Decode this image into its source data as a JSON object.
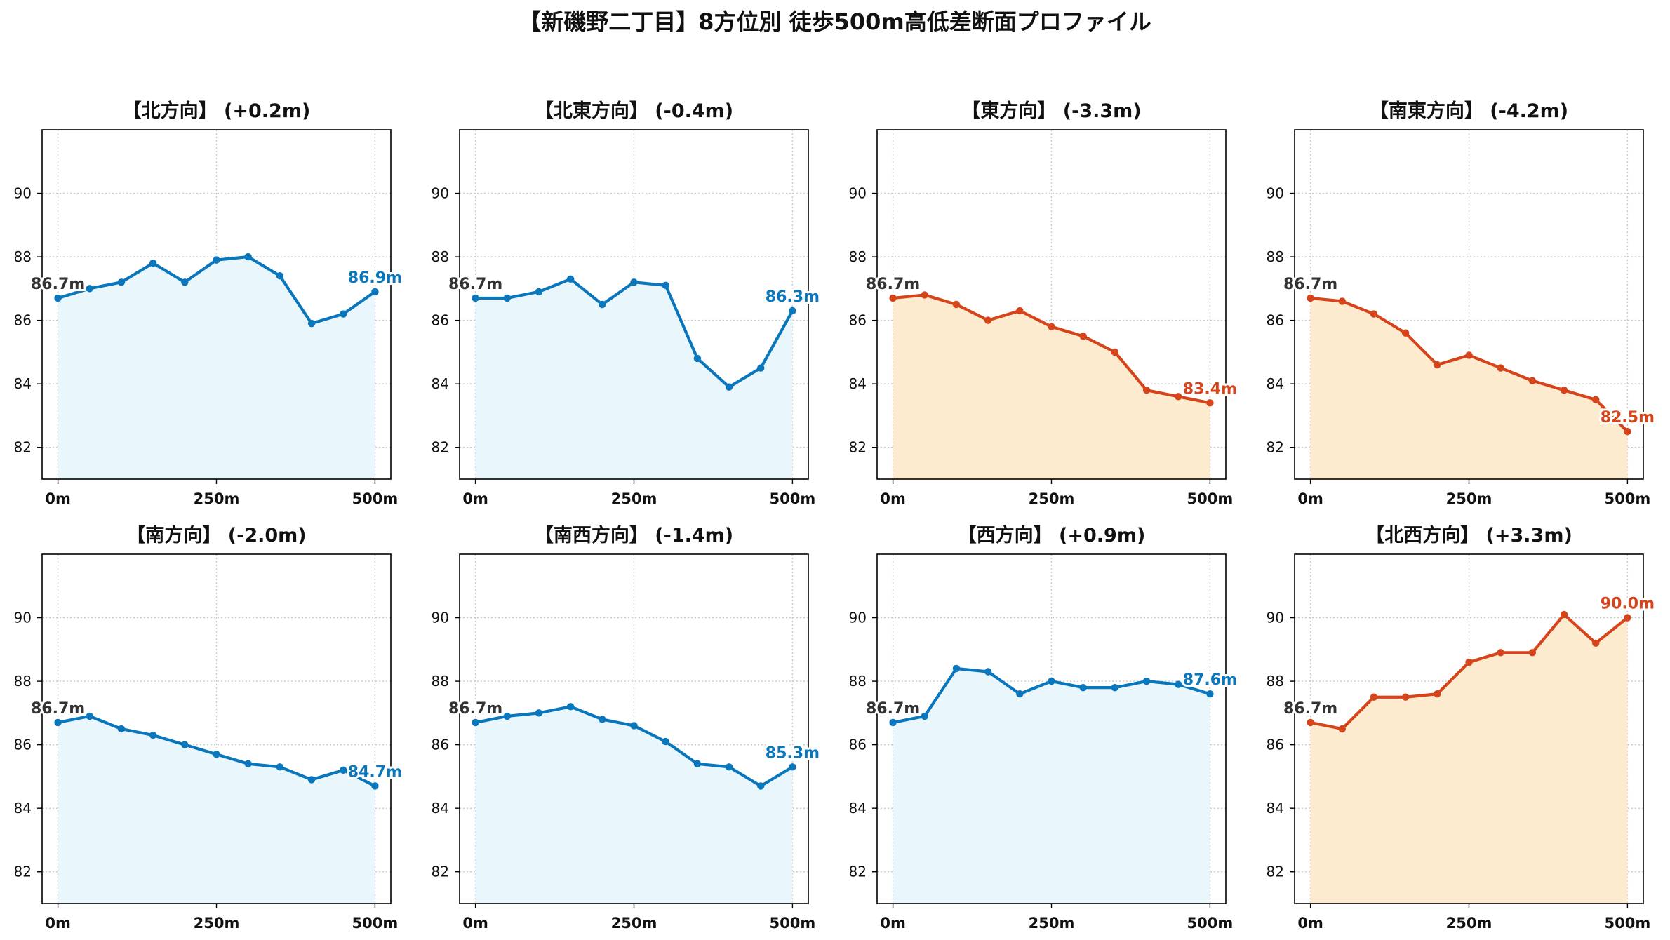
{
  "figure_title": "【新磯野二丁目】8方位別 徒歩500m高低差断面プロファイル",
  "chart_data": [
    {
      "type": "line",
      "title": "【北方向】 (+0.2m)",
      "trend": "flat",
      "x": [
        0,
        50,
        100,
        150,
        200,
        250,
        300,
        350,
        400,
        450,
        500
      ],
      "y": [
        86.7,
        87.0,
        87.2,
        87.8,
        87.2,
        87.9,
        88.0,
        87.4,
        85.9,
        86.2,
        86.9
      ],
      "start_label": "86.7m",
      "end_label": "86.9m",
      "xticks": [
        "0m",
        "250m",
        "500m"
      ],
      "yticks": [
        82,
        84,
        86,
        88,
        90
      ],
      "xlim": [
        -25,
        525
      ],
      "ylim": [
        81,
        92
      ],
      "grid": true
    },
    {
      "type": "line",
      "title": "【北東方向】 (-0.4m)",
      "trend": "flat",
      "x": [
        0,
        50,
        100,
        150,
        200,
        250,
        300,
        350,
        400,
        450,
        500
      ],
      "y": [
        86.7,
        86.7,
        86.9,
        87.3,
        86.5,
        87.2,
        87.1,
        84.8,
        83.9,
        84.5,
        86.3
      ],
      "start_label": "86.7m",
      "end_label": "86.3m",
      "xticks": [
        "0m",
        "250m",
        "500m"
      ],
      "yticks": [
        82,
        84,
        86,
        88,
        90
      ],
      "xlim": [
        -25,
        525
      ],
      "ylim": [
        81,
        92
      ],
      "grid": true
    },
    {
      "type": "line",
      "title": "【東方向】 (-3.3m)",
      "trend": "steep",
      "x": [
        0,
        50,
        100,
        150,
        200,
        250,
        300,
        350,
        400,
        450,
        500
      ],
      "y": [
        86.7,
        86.8,
        86.5,
        86.0,
        86.3,
        85.8,
        85.5,
        85.0,
        83.8,
        83.6,
        83.4
      ],
      "start_label": "86.7m",
      "end_label": "83.4m",
      "xticks": [
        "0m",
        "250m",
        "500m"
      ],
      "yticks": [
        82,
        84,
        86,
        88,
        90
      ],
      "xlim": [
        -25,
        525
      ],
      "ylim": [
        81,
        92
      ],
      "grid": true
    },
    {
      "type": "line",
      "title": "【南東方向】 (-4.2m)",
      "trend": "steep",
      "x": [
        0,
        50,
        100,
        150,
        200,
        250,
        300,
        350,
        400,
        450,
        500
      ],
      "y": [
        86.7,
        86.6,
        86.2,
        85.6,
        84.6,
        84.9,
        84.5,
        84.1,
        83.8,
        83.5,
        82.5
      ],
      "start_label": "86.7m",
      "end_label": "82.5m",
      "xticks": [
        "0m",
        "250m",
        "500m"
      ],
      "yticks": [
        82,
        84,
        86,
        88,
        90
      ],
      "xlim": [
        -25,
        525
      ],
      "ylim": [
        81,
        92
      ],
      "grid": true
    },
    {
      "type": "line",
      "title": "【南方向】 (-2.0m)",
      "trend": "flat",
      "x": [
        0,
        50,
        100,
        150,
        200,
        250,
        300,
        350,
        400,
        450,
        500
      ],
      "y": [
        86.7,
        86.9,
        86.5,
        86.3,
        86.0,
        85.7,
        85.4,
        85.3,
        84.9,
        85.2,
        84.7
      ],
      "start_label": "86.7m",
      "end_label": "84.7m",
      "xticks": [
        "0m",
        "250m",
        "500m"
      ],
      "yticks": [
        82,
        84,
        86,
        88,
        90
      ],
      "xlim": [
        -25,
        525
      ],
      "ylim": [
        81,
        92
      ],
      "grid": true
    },
    {
      "type": "line",
      "title": "【南西方向】 (-1.4m)",
      "trend": "flat",
      "x": [
        0,
        50,
        100,
        150,
        200,
        250,
        300,
        350,
        400,
        450,
        500
      ],
      "y": [
        86.7,
        86.9,
        87.0,
        87.2,
        86.8,
        86.6,
        86.1,
        85.4,
        85.3,
        84.7,
        85.3
      ],
      "start_label": "86.7m",
      "end_label": "85.3m",
      "xticks": [
        "0m",
        "250m",
        "500m"
      ],
      "yticks": [
        82,
        84,
        86,
        88,
        90
      ],
      "xlim": [
        -25,
        525
      ],
      "ylim": [
        81,
        92
      ],
      "grid": true
    },
    {
      "type": "line",
      "title": "【西方向】 (+0.9m)",
      "trend": "flat",
      "x": [
        0,
        50,
        100,
        150,
        200,
        250,
        300,
        350,
        400,
        450,
        500
      ],
      "y": [
        86.7,
        86.9,
        88.4,
        88.3,
        87.6,
        88.0,
        87.8,
        87.8,
        88.0,
        87.9,
        87.6
      ],
      "start_label": "86.7m",
      "end_label": "87.6m",
      "xticks": [
        "0m",
        "250m",
        "500m"
      ],
      "yticks": [
        82,
        84,
        86,
        88,
        90
      ],
      "xlim": [
        -25,
        525
      ],
      "ylim": [
        81,
        92
      ],
      "grid": true
    },
    {
      "type": "line",
      "title": "【北西方向】 (+3.3m)",
      "trend": "steep",
      "x": [
        0,
        50,
        100,
        150,
        200,
        250,
        300,
        350,
        400,
        450,
        500
      ],
      "y": [
        86.7,
        86.5,
        87.5,
        87.5,
        87.6,
        88.6,
        88.9,
        88.9,
        90.1,
        89.2,
        90.0
      ],
      "start_label": "86.7m",
      "end_label": "90.0m",
      "xticks": [
        "0m",
        "250m",
        "500m"
      ],
      "yticks": [
        82,
        84,
        86,
        88,
        90
      ],
      "xlim": [
        -25,
        525
      ],
      "ylim": [
        81,
        92
      ],
      "grid": true
    }
  ],
  "colors": {
    "flat_line": "#0a77bd",
    "flat_fill": "#e9f6fb",
    "steep_line": "#d5441a",
    "steep_fill": "#fdebd0",
    "start_label": "#333333",
    "axis": "#000000",
    "grid": "#c8c8c8"
  }
}
